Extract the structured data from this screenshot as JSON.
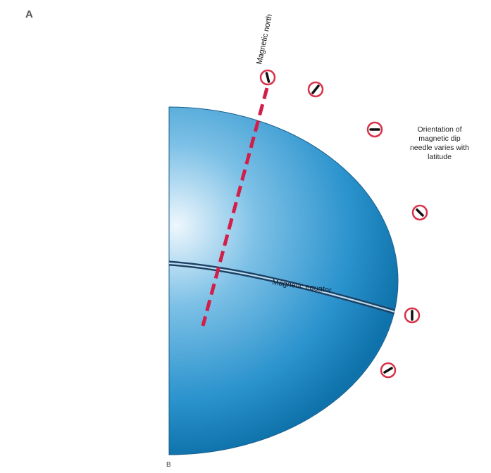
{
  "figure": {
    "panel_a": "A",
    "panel_b": "B",
    "label_magnetic_north": "Magnetic north",
    "label_magnetic_equator": "Magnetic equator",
    "caption": "Orientation of magnetic dip needle varies with latitude"
  },
  "colors": {
    "globe_light": "#eaf5fc",
    "globe_mid": "#3a9ed3",
    "globe_dark": "#0f72aa",
    "axis_line": "#d21f49",
    "compass_ring": "#d8324a"
  },
  "icons": [
    "dip-needle-icon"
  ]
}
